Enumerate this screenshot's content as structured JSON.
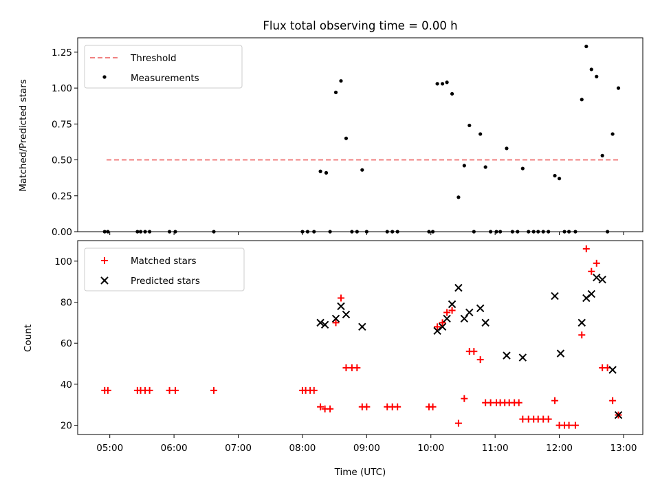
{
  "chart_data": [
    {
      "type": "scatter",
      "title": "Flux total observing time = 0.00 h",
      "xlabel": "",
      "ylabel": "Matched/Predicted stars",
      "xlim": [
        4.5,
        13.3
      ],
      "ylim": [
        0,
        1.35
      ],
      "yticks": [
        0,
        0.25,
        0.5,
        0.75,
        1.0,
        1.25
      ],
      "ytick_labels": [
        "0.00",
        "0.25",
        "0.50",
        "0.75",
        "1.00",
        "1.25"
      ],
      "legend": {
        "position": "top-left",
        "entries": [
          "Threshold",
          "Measurements"
        ]
      },
      "threshold": {
        "name": "Threshold",
        "value": 0.5,
        "x_start": 4.95,
        "x_end": 12.95,
        "color": "#f08080",
        "style": "dashed"
      },
      "series": [
        {
          "name": "Measurements",
          "color": "#000000",
          "marker": "dot",
          "points": [
            [
              4.92,
              0.0
            ],
            [
              4.97,
              0.0
            ],
            [
              5.43,
              0.0
            ],
            [
              5.48,
              0.0
            ],
            [
              5.55,
              0.0
            ],
            [
              5.62,
              0.0
            ],
            [
              5.93,
              0.0
            ],
            [
              6.02,
              0.0
            ],
            [
              6.62,
              0.0
            ],
            [
              8.0,
              0.0
            ],
            [
              8.08,
              0.0
            ],
            [
              8.18,
              0.0
            ],
            [
              8.28,
              0.42
            ],
            [
              8.37,
              0.41
            ],
            [
              8.43,
              0.0
            ],
            [
              8.52,
              0.97
            ],
            [
              8.6,
              1.05
            ],
            [
              8.68,
              0.65
            ],
            [
              8.77,
              0.0
            ],
            [
              8.85,
              0.0
            ],
            [
              8.93,
              0.43
            ],
            [
              9.0,
              0.0
            ],
            [
              9.32,
              0.0
            ],
            [
              9.4,
              0.0
            ],
            [
              9.48,
              0.0
            ],
            [
              9.97,
              0.0
            ],
            [
              10.03,
              0.0
            ],
            [
              10.1,
              1.03
            ],
            [
              10.18,
              1.03
            ],
            [
              10.25,
              1.04
            ],
            [
              10.33,
              0.96
            ],
            [
              10.43,
              0.24
            ],
            [
              10.52,
              0.46
            ],
            [
              10.6,
              0.74
            ],
            [
              10.67,
              0.0
            ],
            [
              10.77,
              0.68
            ],
            [
              10.85,
              0.45
            ],
            [
              10.93,
              0.0
            ],
            [
              11.02,
              0.0
            ],
            [
              11.08,
              0.0
            ],
            [
              11.18,
              0.58
            ],
            [
              11.27,
              0.0
            ],
            [
              11.35,
              0.0
            ],
            [
              11.43,
              0.44
            ],
            [
              11.52,
              0.0
            ],
            [
              11.6,
              0.0
            ],
            [
              11.67,
              0.0
            ],
            [
              11.75,
              0.0
            ],
            [
              11.83,
              0.0
            ],
            [
              11.93,
              0.39
            ],
            [
              12.0,
              0.37
            ],
            [
              12.08,
              0.0
            ],
            [
              12.15,
              0.0
            ],
            [
              12.25,
              0.0
            ],
            [
              12.35,
              0.92
            ],
            [
              12.42,
              1.29
            ],
            [
              12.5,
              1.13
            ],
            [
              12.58,
              1.08
            ],
            [
              12.67,
              0.53
            ],
            [
              12.75,
              0.0
            ],
            [
              12.83,
              0.68
            ],
            [
              12.92,
              1.0
            ]
          ]
        }
      ]
    },
    {
      "type": "scatter",
      "title": "",
      "xlabel": "Time (UTC)",
      "ylabel": "Count",
      "xlim": [
        4.5,
        13.3
      ],
      "ylim": [
        15.5,
        110
      ],
      "xticks": [
        5,
        6,
        7,
        8,
        9,
        10,
        11,
        12,
        13
      ],
      "xtick_labels": [
        "05:00",
        "06:00",
        "07:00",
        "08:00",
        "09:00",
        "10:00",
        "11:00",
        "12:00",
        "13:00"
      ],
      "yticks": [
        20,
        40,
        60,
        80,
        100
      ],
      "ytick_labels": [
        "20",
        "40",
        "60",
        "80",
        "100"
      ],
      "legend": {
        "position": "top-left",
        "entries": [
          "Matched stars",
          "Predicted stars"
        ]
      },
      "series": [
        {
          "name": "Matched stars",
          "color": "#ff0000",
          "marker": "plus",
          "points": [
            [
              4.92,
              37
            ],
            [
              4.97,
              37
            ],
            [
              5.43,
              37
            ],
            [
              5.48,
              37
            ],
            [
              5.55,
              37
            ],
            [
              5.62,
              37
            ],
            [
              5.93,
              37
            ],
            [
              6.02,
              37
            ],
            [
              6.62,
              37
            ],
            [
              8.0,
              37
            ],
            [
              8.05,
              37
            ],
            [
              8.12,
              37
            ],
            [
              8.18,
              37
            ],
            [
              8.28,
              29
            ],
            [
              8.35,
              28
            ],
            [
              8.43,
              28
            ],
            [
              8.52,
              70
            ],
            [
              8.6,
              82
            ],
            [
              8.68,
              48
            ],
            [
              8.77,
              48
            ],
            [
              8.85,
              48
            ],
            [
              8.93,
              29
            ],
            [
              9.0,
              29
            ],
            [
              9.32,
              29
            ],
            [
              9.4,
              29
            ],
            [
              9.48,
              29
            ],
            [
              9.97,
              29
            ],
            [
              10.03,
              29
            ],
            [
              10.1,
              68
            ],
            [
              10.18,
              70
            ],
            [
              10.25,
              75
            ],
            [
              10.33,
              76
            ],
            [
              10.43,
              21
            ],
            [
              10.52,
              33
            ],
            [
              10.6,
              56
            ],
            [
              10.67,
              56
            ],
            [
              10.77,
              52
            ],
            [
              10.85,
              31
            ],
            [
              10.93,
              31
            ],
            [
              11.02,
              31
            ],
            [
              11.08,
              31
            ],
            [
              11.15,
              31
            ],
            [
              11.22,
              31
            ],
            [
              11.3,
              31
            ],
            [
              11.37,
              31
            ],
            [
              11.43,
              23
            ],
            [
              11.52,
              23
            ],
            [
              11.6,
              23
            ],
            [
              11.67,
              23
            ],
            [
              11.75,
              23
            ],
            [
              11.83,
              23
            ],
            [
              11.93,
              32
            ],
            [
              12.0,
              20
            ],
            [
              12.08,
              20
            ],
            [
              12.15,
              20
            ],
            [
              12.25,
              20
            ],
            [
              12.35,
              64
            ],
            [
              12.42,
              106
            ],
            [
              12.5,
              95
            ],
            [
              12.58,
              99
            ],
            [
              12.67,
              48
            ],
            [
              12.75,
              48
            ],
            [
              12.83,
              32
            ],
            [
              12.92,
              25
            ]
          ]
        },
        {
          "name": "Predicted stars",
          "color": "#000000",
          "marker": "x",
          "points": [
            [
              8.28,
              70
            ],
            [
              8.35,
              69
            ],
            [
              8.52,
              72
            ],
            [
              8.6,
              78
            ],
            [
              8.68,
              74
            ],
            [
              8.93,
              68
            ],
            [
              10.1,
              66
            ],
            [
              10.18,
              68
            ],
            [
              10.25,
              72
            ],
            [
              10.33,
              79
            ],
            [
              10.43,
              87
            ],
            [
              10.52,
              72
            ],
            [
              10.6,
              75
            ],
            [
              10.77,
              77
            ],
            [
              10.85,
              70
            ],
            [
              11.18,
              54
            ],
            [
              11.43,
              53
            ],
            [
              11.93,
              83
            ],
            [
              12.02,
              55
            ],
            [
              12.35,
              70
            ],
            [
              12.42,
              82
            ],
            [
              12.5,
              84
            ],
            [
              12.58,
              92
            ],
            [
              12.67,
              91
            ],
            [
              12.83,
              47
            ],
            [
              12.92,
              25
            ]
          ]
        }
      ]
    }
  ]
}
